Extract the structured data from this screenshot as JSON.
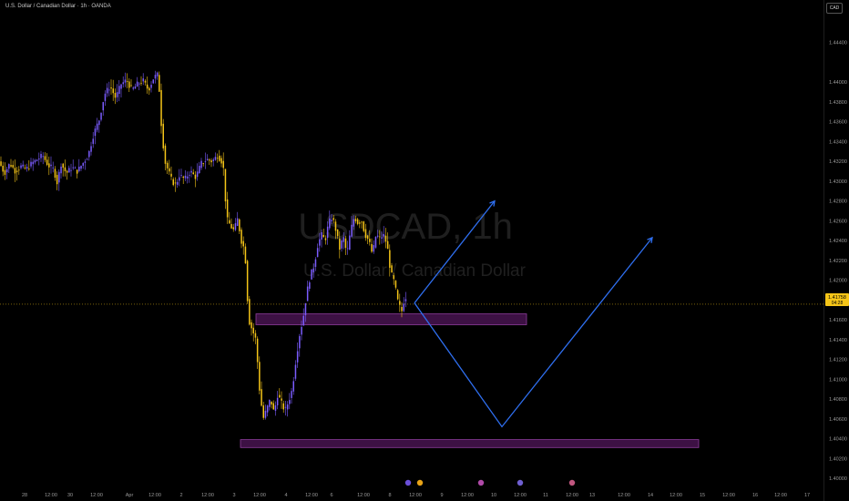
{
  "header": {
    "title": "U.S. Dollar / Canadian Dollar · 1h · OANDA",
    "currency": "CAD"
  },
  "watermark": {
    "symbol": "USDCAD, 1h",
    "name": "U.S. Dollar / Canadian Dollar"
  },
  "colors": {
    "background": "#000000",
    "candle_up": "#7b5cff",
    "candle_down": "#f5c518",
    "zone_fill": "#3d1144",
    "zone_border": "#8e3d9c",
    "projection": "#2f6ff0",
    "price_line": "#f5c518",
    "axis_text": "#9a9a9a"
  },
  "chart_data": {
    "type": "candlestick",
    "title": "USDCAD, 1h",
    "subtitle": "U.S. Dollar / Canadian Dollar",
    "source": "OANDA",
    "interval": "1h",
    "current_price": 1.41758,
    "countdown": "04:28",
    "y_axis": {
      "ylim": [
        1.4,
        1.446
      ],
      "ticks": [
        "1.44400",
        "1.44000",
        "1.43800",
        "1.43600",
        "1.43400",
        "1.43200",
        "1.43000",
        "1.42800",
        "1.42600",
        "1.42400",
        "1.42200",
        "1.42000",
        "1.41800",
        "1.41600",
        "1.41400",
        "1.41200",
        "1.41000",
        "1.40800",
        "1.40600",
        "1.40400",
        "1.40200",
        "1.40000"
      ]
    },
    "x_axis": {
      "ticks": [
        "28",
        "12:00",
        "30",
        "12:00",
        "Apr",
        "12:00",
        "2",
        "12:00",
        "3",
        "12:00",
        "4",
        "12:00",
        "6",
        "12:00",
        "8",
        "12:00",
        "9",
        "12:00",
        "10",
        "12:00",
        "11",
        "12:00",
        "13",
        "12:00",
        "14",
        "12:00",
        "15",
        "12:00",
        "16",
        "12:00",
        "17",
        "12:00",
        "18"
      ]
    },
    "price_path": [
      [
        0,
        1.432
      ],
      [
        6,
        1.4308
      ],
      [
        12,
        1.4318
      ],
      [
        18,
        1.431
      ],
      [
        24,
        1.4315
      ],
      [
        30,
        1.4312
      ],
      [
        36,
        1.4318
      ],
      [
        42,
        1.4322
      ],
      [
        48,
        1.4326
      ],
      [
        54,
        1.4316
      ],
      [
        60,
        1.4312
      ],
      [
        64,
        1.4298
      ],
      [
        68,
        1.4318
      ],
      [
        74,
        1.4308
      ],
      [
        80,
        1.4314
      ],
      [
        86,
        1.431
      ],
      [
        92,
        1.4318
      ],
      [
        98,
        1.4326
      ],
      [
        104,
        1.4348
      ],
      [
        110,
        1.4362
      ],
      [
        116,
        1.4388
      ],
      [
        122,
        1.4396
      ],
      [
        128,
        1.4384
      ],
      [
        134,
        1.4398
      ],
      [
        140,
        1.4402
      ],
      [
        146,
        1.4392
      ],
      [
        152,
        1.4398
      ],
      [
        158,
        1.4402
      ],
      [
        164,
        1.4392
      ],
      [
        170,
        1.4405
      ],
      [
        175,
        1.4408
      ],
      [
        178,
        1.436
      ],
      [
        182,
        1.432
      ],
      [
        186,
        1.431
      ],
      [
        190,
        1.43
      ],
      [
        194,
        1.4296
      ],
      [
        198,
        1.4306
      ],
      [
        204,
        1.4302
      ],
      [
        210,
        1.431
      ],
      [
        216,
        1.4304
      ],
      [
        222,
        1.4318
      ],
      [
        228,
        1.4322
      ],
      [
        234,
        1.432
      ],
      [
        240,
        1.4326
      ],
      [
        246,
        1.4318
      ],
      [
        250,
        1.4262
      ],
      [
        254,
        1.4255
      ],
      [
        258,
        1.425
      ],
      [
        262,
        1.4262
      ],
      [
        266,
        1.424
      ],
      [
        270,
        1.423
      ],
      [
        274,
        1.416
      ],
      [
        278,
        1.415
      ],
      [
        282,
        1.414
      ],
      [
        286,
        1.409
      ],
      [
        290,
        1.406
      ],
      [
        294,
        1.407
      ],
      [
        298,
        1.408
      ],
      [
        302,
        1.4066
      ],
      [
        306,
        1.4085
      ],
      [
        310,
        1.4076
      ],
      [
        314,
        1.4068
      ],
      [
        318,
        1.4078
      ],
      [
        322,
        1.409
      ],
      [
        326,
        1.412
      ],
      [
        330,
        1.4145
      ],
      [
        334,
        1.4162
      ],
      [
        338,
        1.4188
      ],
      [
        342,
        1.4205
      ],
      [
        346,
        1.4215
      ],
      [
        350,
        1.4236
      ],
      [
        354,
        1.4246
      ],
      [
        358,
        1.424
      ],
      [
        362,
        1.4258
      ],
      [
        366,
        1.4264
      ],
      [
        370,
        1.425
      ],
      [
        374,
        1.4232
      ],
      [
        378,
        1.4244
      ],
      [
        382,
        1.4226
      ],
      [
        386,
        1.425
      ],
      [
        390,
        1.4264
      ],
      [
        394,
        1.4258
      ],
      [
        398,
        1.426
      ],
      [
        402,
        1.4246
      ],
      [
        406,
        1.424
      ],
      [
        410,
        1.4226
      ],
      [
        414,
        1.4246
      ],
      [
        418,
        1.4242
      ],
      [
        422,
        1.4246
      ],
      [
        426,
        1.4236
      ],
      [
        430,
        1.4208
      ],
      [
        434,
        1.4198
      ],
      [
        438,
        1.4178
      ],
      [
        442,
        1.4168
      ],
      [
        446,
        1.4186
      ],
      [
        448,
        1.4176
      ]
    ],
    "zones": [
      {
        "from": 1.4155,
        "to": 1.4166
      },
      {
        "from": 1.4031,
        "to": 1.4039
      }
    ],
    "projections": [
      [
        [
          1.4177
        ],
        [
          1.428
        ]
      ],
      [
        [
          1.4177
        ],
        [
          1.4052
        ],
        [
          1.4243
        ]
      ]
    ],
    "events": [
      "event-icon-a",
      "event-icon-b",
      "event-icon-c",
      "event-icon-d",
      "event-icon-e"
    ]
  }
}
